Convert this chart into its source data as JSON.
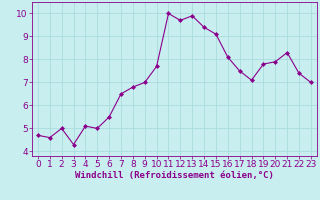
{
  "x": [
    0,
    1,
    2,
    3,
    4,
    5,
    6,
    7,
    8,
    9,
    10,
    11,
    12,
    13,
    14,
    15,
    16,
    17,
    18,
    19,
    20,
    21,
    22,
    23
  ],
  "y": [
    4.7,
    4.6,
    5.0,
    4.3,
    5.1,
    5.0,
    5.5,
    6.5,
    6.8,
    7.0,
    7.7,
    10.0,
    9.7,
    9.9,
    9.4,
    9.1,
    8.1,
    7.5,
    7.1,
    7.8,
    7.9,
    8.3,
    7.4,
    7.0
  ],
  "line_color": "#8B008B",
  "marker": "D",
  "marker_size": 2.0,
  "bg_color": "#c8eef0",
  "grid_color": "#aadddd",
  "xlabel": "Windchill (Refroidissement éolien,°C)",
  "xlabel_color": "#8B008B",
  "tick_color": "#8B008B",
  "ylim": [
    3.8,
    10.5
  ],
  "xlim": [
    -0.5,
    23.5
  ],
  "yticks": [
    4,
    5,
    6,
    7,
    8,
    9,
    10
  ],
  "xticks": [
    0,
    1,
    2,
    3,
    4,
    5,
    6,
    7,
    8,
    9,
    10,
    11,
    12,
    13,
    14,
    15,
    16,
    17,
    18,
    19,
    20,
    21,
    22,
    23
  ],
  "tick_fontsize": 6.5,
  "xlabel_fontsize": 6.5
}
